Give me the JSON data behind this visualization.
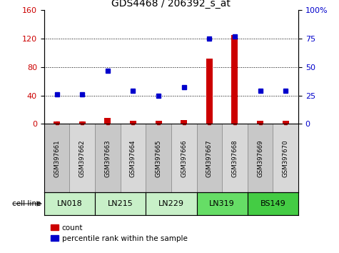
{
  "title": "GDS4468 / 206392_s_at",
  "samples": [
    "GSM397661",
    "GSM397662",
    "GSM397663",
    "GSM397664",
    "GSM397665",
    "GSM397666",
    "GSM397667",
    "GSM397668",
    "GSM397669",
    "GSM397670"
  ],
  "count_values": [
    3,
    3,
    8,
    4,
    4,
    5,
    92,
    125,
    4,
    4
  ],
  "percentile_values": [
    26,
    26,
    47,
    29,
    25,
    32,
    75,
    77,
    29,
    29
  ],
  "cell_lines": [
    {
      "label": "LN018",
      "samples": [
        0,
        1
      ],
      "color": "#c8f0c8"
    },
    {
      "label": "LN215",
      "samples": [
        2,
        3
      ],
      "color": "#c8f0c8"
    },
    {
      "label": "LN229",
      "samples": [
        4,
        5
      ],
      "color": "#c8f0c8"
    },
    {
      "label": "LN319",
      "samples": [
        6,
        7
      ],
      "color": "#66dd66"
    },
    {
      "label": "BS149",
      "samples": [
        8,
        9
      ],
      "color": "#44cc44"
    }
  ],
  "ylim_left": [
    0,
    160
  ],
  "ylim_right": [
    0,
    100
  ],
  "yticks_left": [
    0,
    40,
    80,
    120,
    160
  ],
  "yticks_right": [
    0,
    25,
    50,
    75,
    100
  ],
  "bar_color": "#cc0000",
  "dot_color": "#0000cc",
  "legend_count_color": "#cc0000",
  "legend_pct_color": "#0000cc",
  "sample_cell_colors": [
    "#c8c8c8",
    "#d8d8d8"
  ]
}
